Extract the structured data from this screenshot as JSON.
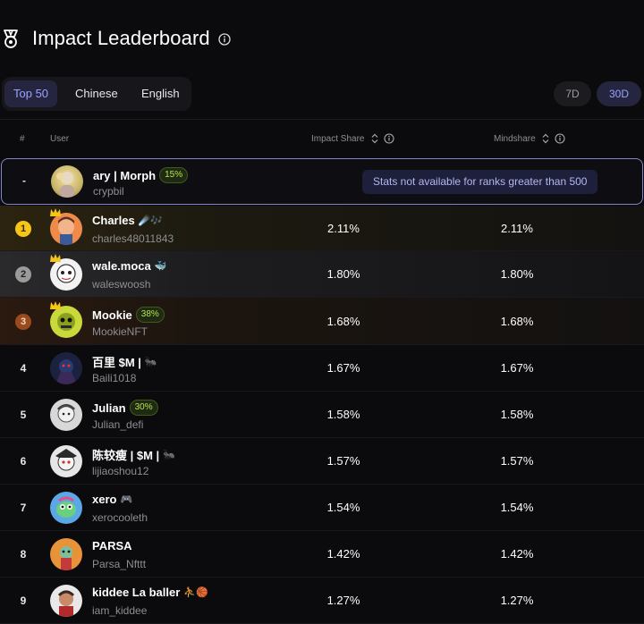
{
  "header": {
    "title": "Impact Leaderboard",
    "icon": "medal-icon",
    "info_icon": "info-icon"
  },
  "filters": {
    "items": [
      "Top 50",
      "Chinese",
      "English"
    ],
    "active": "Top 50"
  },
  "periods": {
    "items": [
      "7D",
      "30D"
    ],
    "active": "30D"
  },
  "table": {
    "columns": {
      "rank": "#",
      "user": "User",
      "impact": "Impact Share",
      "mindshare": "Mindshare"
    },
    "self_row": {
      "rank": "-",
      "name": "ary | Morph",
      "badge": "15%",
      "handle": "crypbil"
    },
    "tooltip": "Stats not available for ranks greater than 500",
    "rows": [
      {
        "rank": "1",
        "name": "Charles",
        "emoji": "☄️🎶",
        "handle": "charles48011843",
        "badge": "",
        "impact": "2.11%",
        "mindshare": "2.11%"
      },
      {
        "rank": "2",
        "name": "wale.moca",
        "emoji": "🐳",
        "handle": "waleswoosh",
        "badge": "",
        "impact": "1.80%",
        "mindshare": "1.80%"
      },
      {
        "rank": "3",
        "name": "Mookie",
        "emoji": "",
        "handle": "MookieNFT",
        "badge": "38%",
        "impact": "1.68%",
        "mindshare": "1.68%"
      },
      {
        "rank": "4",
        "name": "百里 $M |",
        "emoji": "🐜",
        "handle": "Baili1018",
        "badge": "",
        "impact": "1.67%",
        "mindshare": "1.67%"
      },
      {
        "rank": "5",
        "name": "Julian",
        "emoji": "",
        "handle": "Julian_defi",
        "badge": "30%",
        "impact": "1.58%",
        "mindshare": "1.58%"
      },
      {
        "rank": "6",
        "name": "陈较瘦 | $M |",
        "emoji": "🐜",
        "handle": "lijiaoshou12",
        "badge": "",
        "impact": "1.57%",
        "mindshare": "1.57%"
      },
      {
        "rank": "7",
        "name": "xero",
        "emoji": "🎮",
        "handle": "xerocooleth",
        "badge": "",
        "impact": "1.54%",
        "mindshare": "1.54%"
      },
      {
        "rank": "8",
        "name": "PARSA",
        "emoji": "",
        "handle": "Parsa_Nfttt",
        "badge": "",
        "impact": "1.42%",
        "mindshare": "1.42%"
      },
      {
        "rank": "9",
        "name": "kiddee La baller",
        "emoji": "⛹️🏀",
        "handle": "iam_kiddee",
        "badge": "",
        "impact": "1.27%",
        "mindshare": "1.27%"
      }
    ]
  },
  "colors": {
    "accent": "#9aa3ff",
    "gold": "#f5c518",
    "silver": "#9a9a9a",
    "bronze": "#9b4a1d",
    "badge_green": "#b6e34a"
  }
}
